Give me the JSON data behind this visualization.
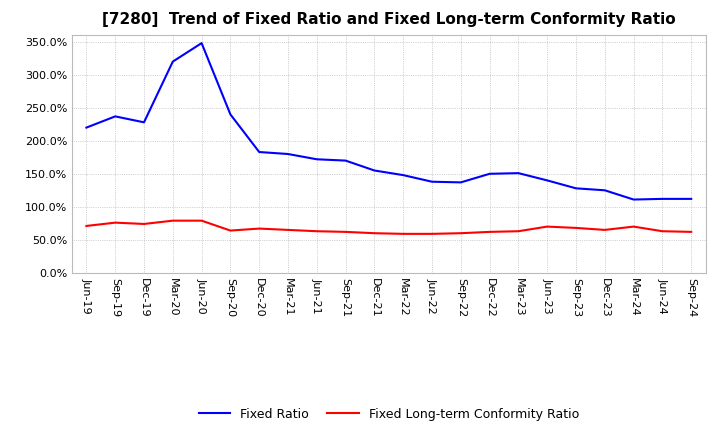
{
  "title": "[7280]  Trend of Fixed Ratio and Fixed Long-term Conformity Ratio",
  "x_labels": [
    "Jun-19",
    "Sep-19",
    "Dec-19",
    "Mar-20",
    "Jun-20",
    "Sep-20",
    "Dec-20",
    "Mar-21",
    "Jun-21",
    "Sep-21",
    "Dec-21",
    "Mar-22",
    "Jun-22",
    "Sep-22",
    "Dec-22",
    "Mar-23",
    "Jun-23",
    "Sep-23",
    "Dec-23",
    "Mar-24",
    "Jun-24",
    "Sep-24"
  ],
  "fixed_ratio": [
    2.2,
    2.37,
    2.28,
    3.2,
    3.48,
    2.4,
    1.83,
    1.8,
    1.72,
    1.7,
    1.55,
    1.48,
    1.38,
    1.37,
    1.5,
    1.51,
    1.4,
    1.28,
    1.25,
    1.11,
    1.12,
    1.12
  ],
  "fixed_lt_ratio": [
    0.71,
    0.76,
    0.74,
    0.79,
    0.79,
    0.64,
    0.67,
    0.65,
    0.63,
    0.62,
    0.6,
    0.59,
    0.59,
    0.6,
    0.62,
    0.63,
    0.7,
    0.68,
    0.65,
    0.7,
    0.63,
    0.62
  ],
  "fixed_ratio_color": "#0000ff",
  "fixed_lt_ratio_color": "#ff0000",
  "ylim": [
    0.0,
    3.6
  ],
  "yticks": [
    0.0,
    0.5,
    1.0,
    1.5,
    2.0,
    2.5,
    3.0,
    3.5
  ],
  "background_color": "#ffffff",
  "grid_color": "#aaaaaa",
  "legend_fixed_ratio": "Fixed Ratio",
  "legend_fixed_lt_ratio": "Fixed Long-term Conformity Ratio",
  "title_fontsize": 11,
  "tick_fontsize": 8,
  "legend_fontsize": 9
}
